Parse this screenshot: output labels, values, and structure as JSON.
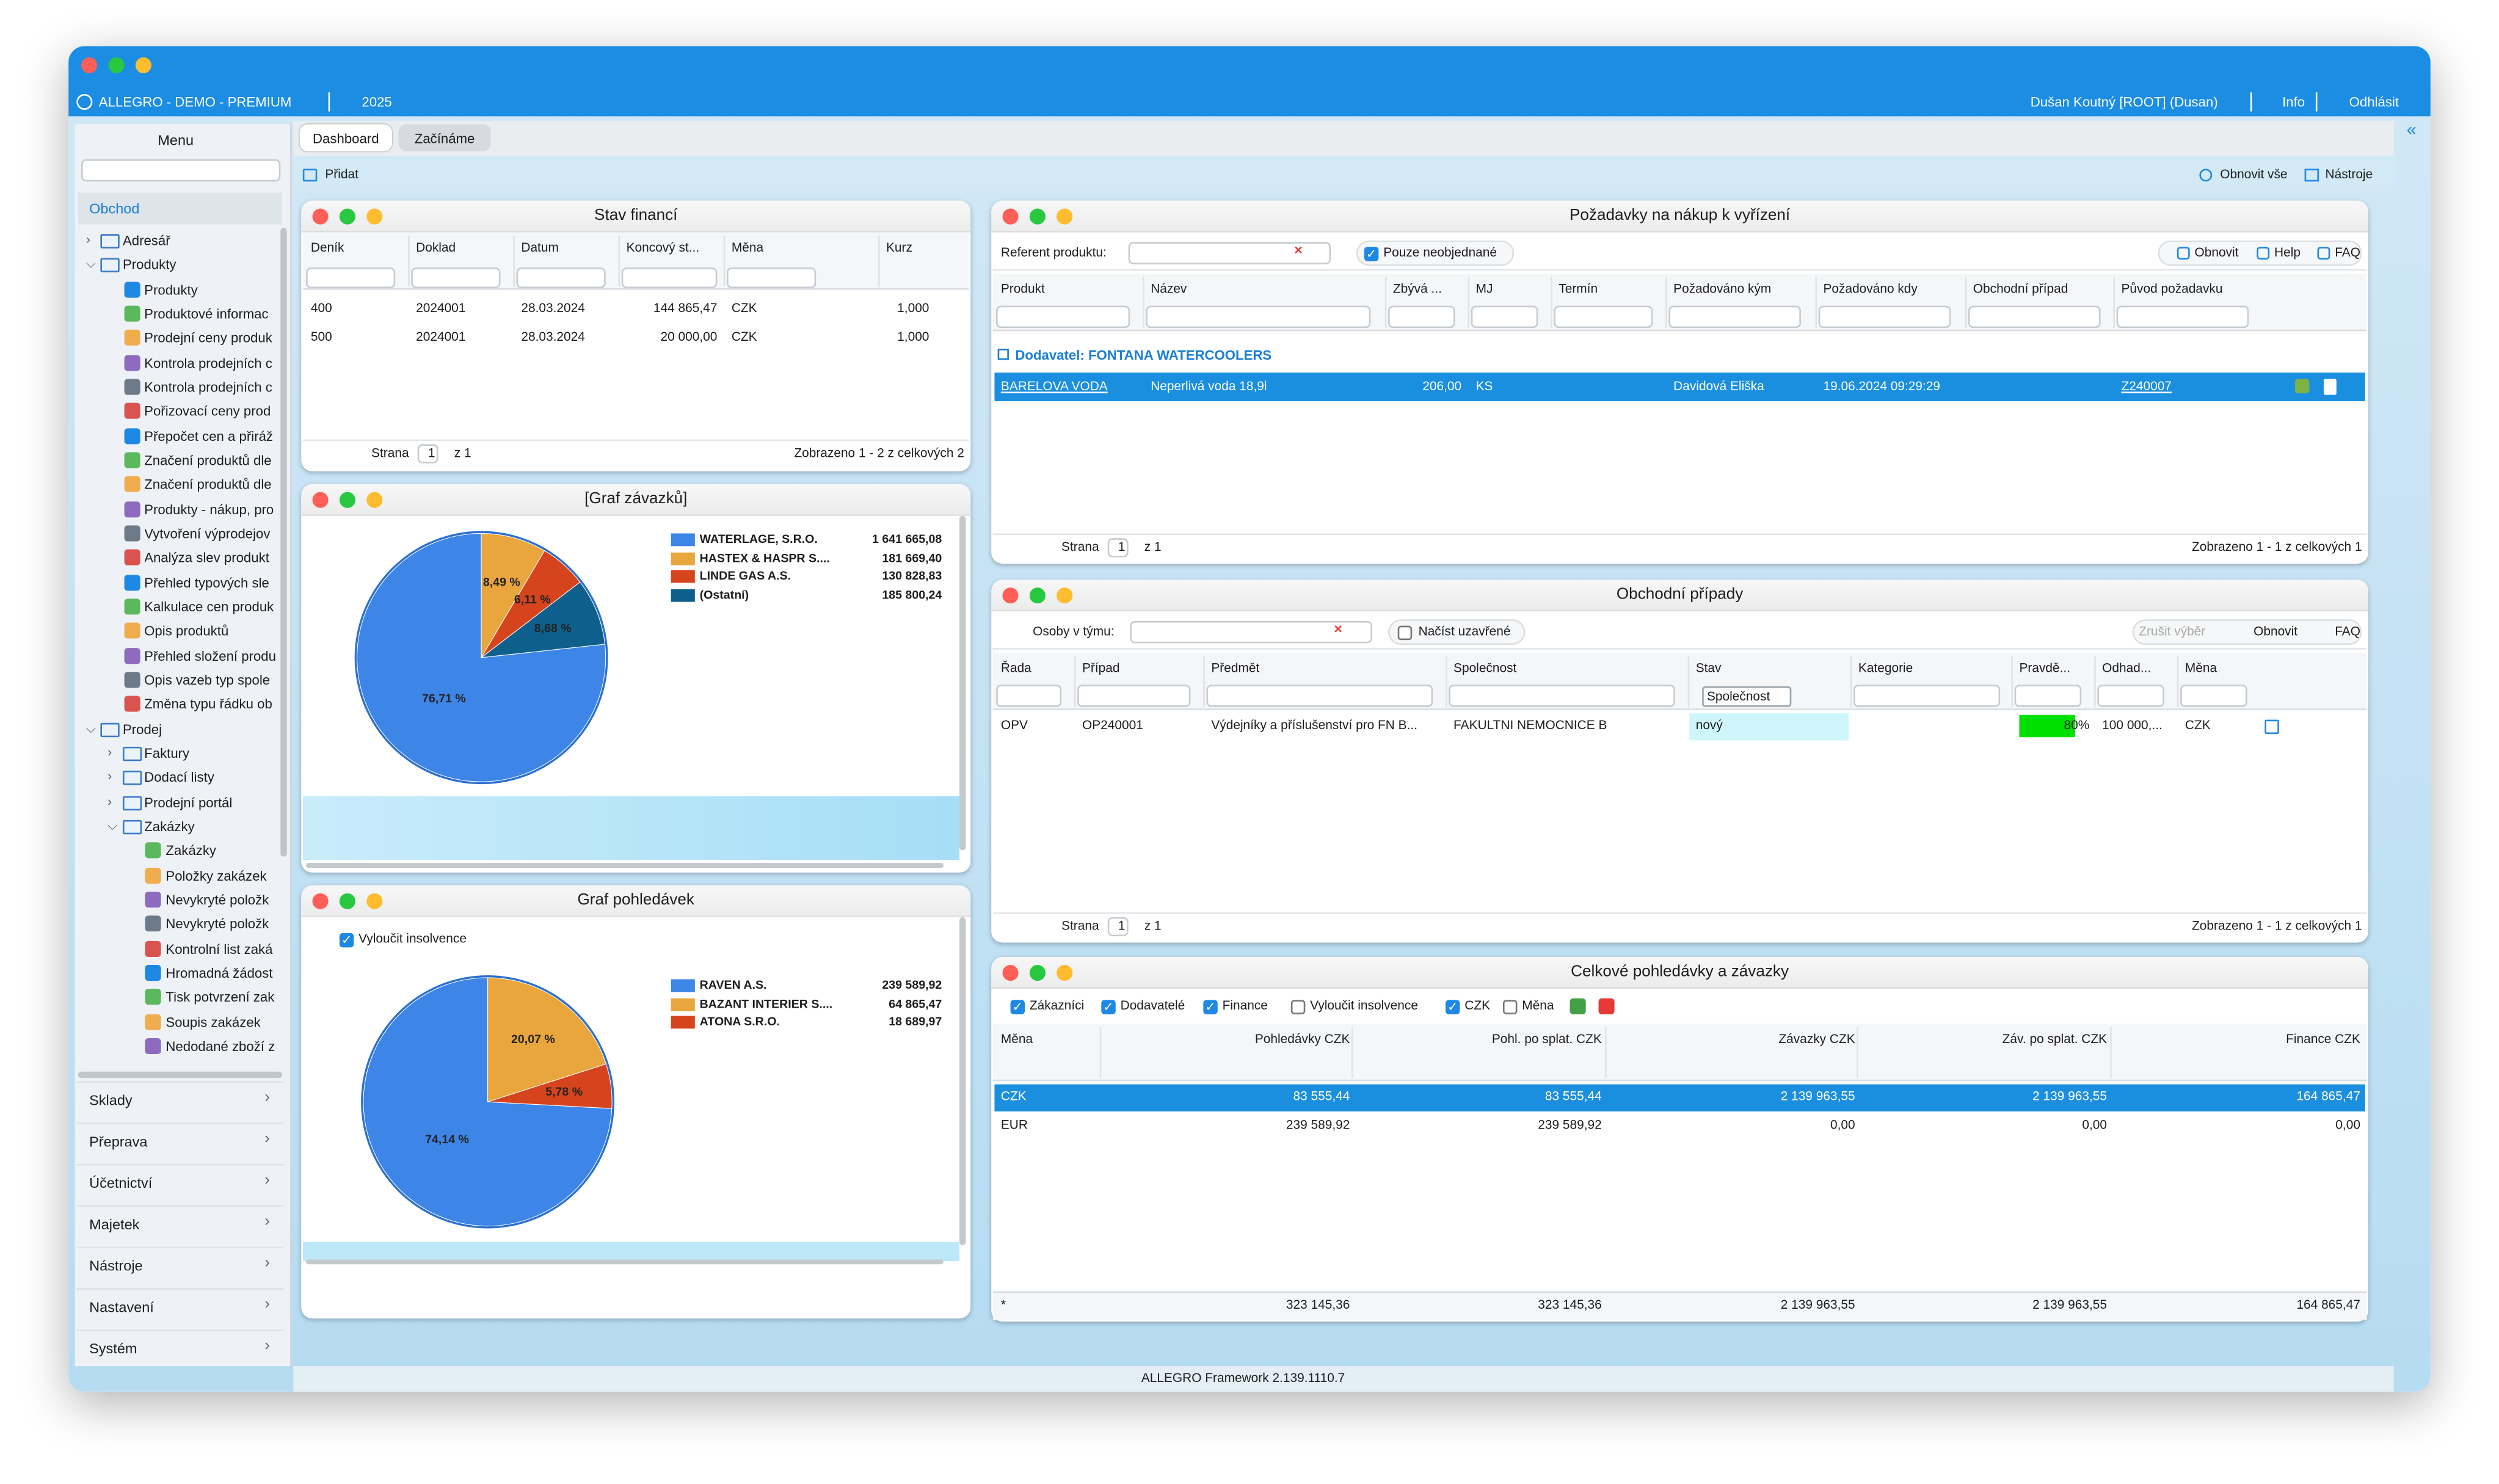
{
  "app_bar": {
    "app": "ALLEGRO - DEMO - PREMIUM",
    "year": "2025",
    "user": "Dušan Koutný [ROOT] (Dusan)",
    "info": "Info",
    "logout": "Odhlásit"
  },
  "sidebar": {
    "title": "Menu",
    "section": "Obchod",
    "tree": [
      {
        "label": "Adresář",
        "children": []
      },
      {
        "label": "Produkty",
        "children": [
          "Produkty",
          "Produktové informac",
          "Prodejní ceny produk",
          "Kontrola prodejních c",
          "Kontrola prodejních c",
          "Pořizovací ceny prod",
          "Přepočet cen a přiráž",
          "Značení produktů dle",
          "Značení produktů dle",
          "Produkty - nákup, pro",
          "Vytvoření výprodejov",
          "Analýza slev produkt",
          "Přehled typových sle",
          "Kalkulace cen produk",
          "Opis produktů",
          "Přehled složení produ",
          "Opis vazeb typ spole",
          "Změna typu řádku ob"
        ]
      },
      {
        "label": "Prodej",
        "children": [
          {
            "label": "Faktury",
            "children": []
          },
          {
            "label": "Dodací listy",
            "children": []
          },
          {
            "label": "Prodejní portál",
            "children": []
          },
          {
            "label": "Zakázky",
            "children": [
              "Zakázky",
              "Položky zakázek",
              "Nevykryté položk",
              "Nevykryté položk",
              "Kontrolní list zaká",
              "Hromadná žádost",
              "Tisk potvrzení zak",
              "Soupis zakázek",
              "Nedodané zboží z"
            ]
          }
        ]
      }
    ],
    "sections": [
      "Sklady",
      "Přeprava",
      "Účetnictví",
      "Majetek",
      "Nástroje",
      "Nastavení",
      "Systém"
    ]
  },
  "tabs": [
    "Dashboard",
    "Začínáme"
  ],
  "toolbar": {
    "add": "Přidat",
    "refresh_all": "Obnovit vše",
    "tools": "Nástroje"
  },
  "finance": {
    "title": "Stav financí",
    "columns": [
      "Deník",
      "Doklad",
      "Datum",
      "Koncový st...",
      "Měna",
      "Kurz"
    ],
    "rows": [
      [
        "400",
        "2024001",
        "28.03.2024",
        "144 865,47",
        "CZK",
        "1,000"
      ],
      [
        "500",
        "2024001",
        "28.03.2024",
        "20 000,00",
        "CZK",
        "1,000"
      ]
    ],
    "pager": {
      "page_label": "Strana",
      "page": "1",
      "of": "z 1",
      "summary": "Zobrazeno 1 - 2 z celkových 2"
    }
  },
  "payables_chart": {
    "title": "[Graf závazků]",
    "slices": [
      {
        "name": "WATERLAGE, S.R.O.",
        "amount": "1 641 665,08",
        "percent": 76.71,
        "percent_label": "76,71 %",
        "color": "#3d85e6"
      },
      {
        "name": "HASTEX & HASPR S....",
        "amount": "181 669,40",
        "percent": 8.49,
        "percent_label": "8,49 %",
        "color": "#e9a63c"
      },
      {
        "name": "LINDE GAS A.S.",
        "amount": "130 828,83",
        "percent": 6.11,
        "percent_label": "6,11 %",
        "color": "#d6441e"
      },
      {
        "name": "(Ostatní)",
        "amount": "185 800,24",
        "percent": 8.68,
        "percent_label": "8,68 %",
        "color": "#0f5f8c"
      }
    ]
  },
  "receivables_chart": {
    "title": "Graf pohledávek",
    "exclude_insolvency": {
      "label": "Vyloučit insolvence",
      "checked": true
    },
    "slices": [
      {
        "name": "RAVEN A.S.",
        "amount": "239 589,92",
        "percent": 74.14,
        "percent_label": "74,14 %",
        "color": "#3d85e6"
      },
      {
        "name": "BAZANT  INTERIER S....",
        "amount": "64 865,47",
        "percent": 20.07,
        "percent_label": "20,07 %",
        "color": "#e9a63c"
      },
      {
        "name": "ATONA S.R.O.",
        "amount": "18 689,97",
        "percent": 5.78,
        "percent_label": "5,78 %",
        "color": "#d6441e"
      }
    ]
  },
  "purchase_requests": {
    "title": "Požadavky na nákup k vyřízení",
    "filter_label": "Referent produktu:",
    "only_unordered": {
      "label": "Pouze neobjednané",
      "checked": true
    },
    "buttons": [
      "Obnovit",
      "Help",
      "FAQ"
    ],
    "columns": [
      "Produkt",
      "Název",
      "Zbývá ...",
      "MJ",
      "Termín",
      "Požadováno kým",
      "Požadováno kdy",
      "Obchodní případ",
      "Původ požadavku"
    ],
    "group": "Dodavatel: FONTANA WATERCOOLERS",
    "rows": [
      [
        "BARELOVA VODA",
        "Neperlivá voda 18,9l",
        "206,00",
        "KS",
        null,
        "Davidová Eliška",
        "19.06.2024 09:29:29",
        null,
        "Z240007"
      ]
    ],
    "pager": {
      "page_label": "Strana",
      "page": "1",
      "of": "z 1",
      "summary": "Zobrazeno 1 - 1 z celkových 1"
    }
  },
  "business_cases": {
    "title": "Obchodní případy",
    "filter_label": "Osoby v týmu:",
    "load_closed": {
      "label": "Načíst uzavřené",
      "checked": false
    },
    "buttons": [
      "Zrušit výběr",
      "Obnovit",
      "FAQ"
    ],
    "columns": [
      "Řada",
      "Případ",
      "Předmět",
      "Společnost",
      "Stav",
      "Kategorie",
      "Pravdě...",
      "Odhad...",
      "Měna"
    ],
    "status_filter": "Společnost",
    "rows": [
      [
        "OPV",
        "OP240001",
        "Výdejníky a příslušenství pro FN B...",
        "FAKULTNI NEMOCNICE B",
        "nový",
        null,
        {
          "value": 80,
          "label": "80%"
        },
        "100 000,...",
        "CZK"
      ]
    ],
    "pager": {
      "page_label": "Strana",
      "page": "1",
      "of": "z 1",
      "summary": "Zobrazeno 1 - 1 z celkových 1"
    }
  },
  "totals": {
    "title": "Celkové pohledávky a závazky",
    "filters": [
      {
        "label": "Zákazníci",
        "checked": true
      },
      {
        "label": "Dodavatelé",
        "checked": true
      },
      {
        "label": "Finance",
        "checked": true
      },
      {
        "label": "Vyloučit insolvence",
        "checked": false
      },
      {
        "label": "CZK",
        "checked": true
      },
      {
        "label": "Měna",
        "checked": false
      }
    ],
    "columns": [
      "Měna",
      "Pohledávky CZK",
      "Pohl. po splat. CZK",
      "Závazky CZK",
      "Záv. po splat. CZK",
      "Finance CZK"
    ],
    "rows": [
      [
        "CZK",
        "83 555,44",
        "83 555,44",
        "2 139 963,55",
        "2 139 963,55",
        "164 865,47"
      ],
      [
        "EUR",
        "239 589,92",
        "239 589,92",
        "0,00",
        "0,00",
        "0,00"
      ]
    ],
    "total": [
      "*",
      "323 145,36",
      "323 145,36",
      "2 139 963,55",
      "2 139 963,55",
      "164 865,47"
    ]
  },
  "footer": "ALLEGRO Framework 2.139.1110.7"
}
